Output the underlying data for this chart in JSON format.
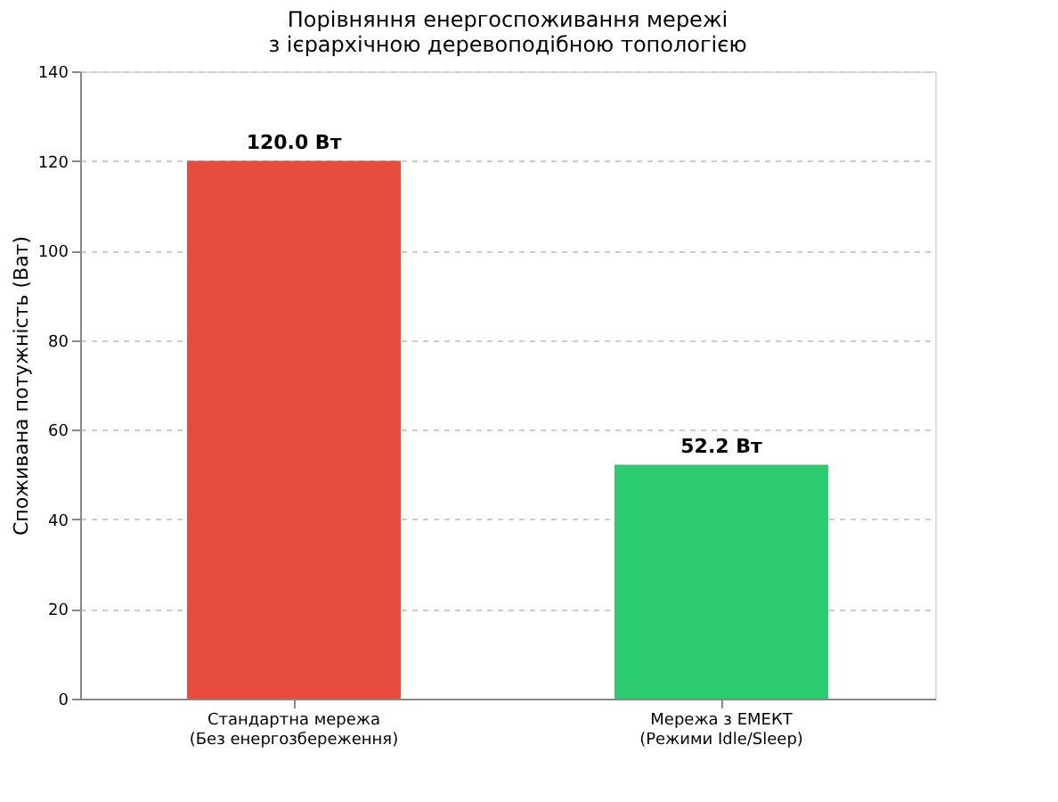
{
  "chart_data": {
    "type": "bar",
    "title": "Порівняння енергоспоживання мережі\nз ієрархічною деревоподібною топологією",
    "ylabel": "Споживана потужність (Ват)",
    "categories": [
      "Стандартна мережа\n(Без енергозбереження)",
      "Мережа з ЕМЕКТ\n(Режими Idle/Sleep)"
    ],
    "values": [
      120.0,
      52.2
    ],
    "colors": [
      "#e74c3c",
      "#2ecc71"
    ],
    "value_labels": [
      "120.0 Вт",
      "52.2 Вт"
    ],
    "ylim": [
      0,
      140
    ],
    "yticks": [
      0,
      20,
      40,
      60,
      80,
      100,
      120,
      140
    ],
    "grid": "y"
  }
}
